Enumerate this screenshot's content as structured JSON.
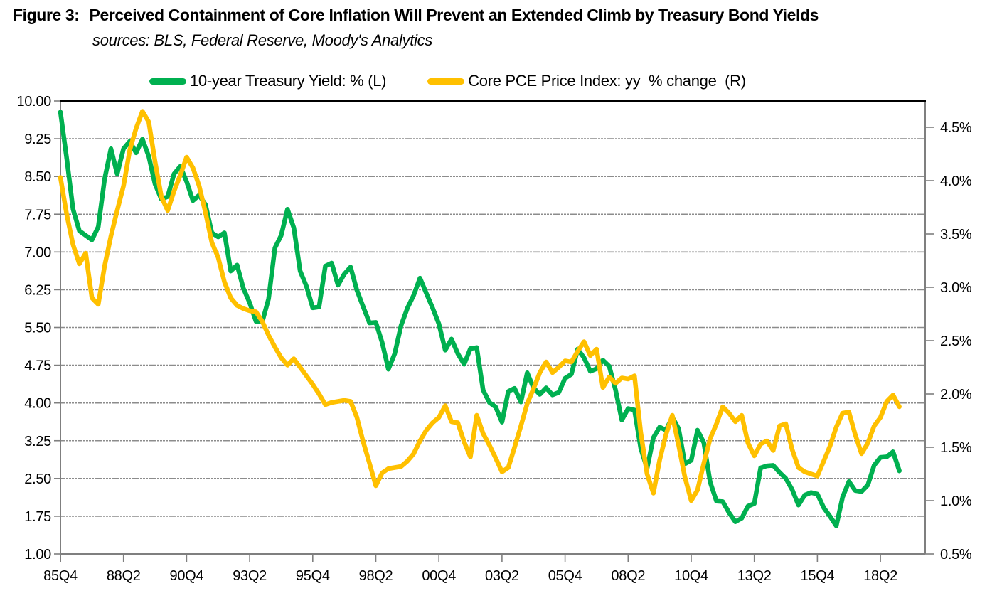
{
  "figure": {
    "title_prefix": "Figure 3:",
    "title": "Perceived Containment of Core Inflation Will Prevent an Extended Climb by Treasury Bond Yields",
    "subtitle": "sources: BLS, Federal Reserve, Moody's Analytics"
  },
  "legend": [
    {
      "label": "10-year Treasury Yield: % (L)",
      "color": "#00B050"
    },
    {
      "label": "Core PCE Price Index: yy  % change  (R)",
      "color": "#FFC000"
    }
  ],
  "colors": {
    "grid": "#8C8C8C",
    "frame": "#7F7F7F",
    "top_border": "#000000",
    "background": "#FFFFFF",
    "treasury_green": "#00B050",
    "pce_gold": "#FFC000"
  },
  "chart_data": {
    "type": "line",
    "title": "Figure 3: Perceived Containment of Core Inflation Will Prevent an Extended Climb by Treasury Bond Yields",
    "grid": "horizontal",
    "legend_position": "top",
    "left_axis": {
      "min": 1.0,
      "max": 10.0,
      "step": 0.75,
      "tick_labels": [
        "10.00",
        "9.25",
        "8.50",
        "7.75",
        "7.00",
        "6.25",
        "5.50",
        "4.75",
        "4.00",
        "3.25",
        "2.50",
        "1.75",
        "1.00"
      ]
    },
    "right_axis": {
      "min": 0.5,
      "max": 4.5,
      "step": 0.5,
      "tick_labels": [
        "4.5%",
        "4.0%",
        "3.5%",
        "3.0%",
        "2.5%",
        "2.0%",
        "1.5%",
        "1.0%",
        "0.5%"
      ]
    },
    "x_tick_labels": [
      "85Q4",
      "88Q2",
      "90Q4",
      "93Q2",
      "95Q4",
      "98Q2",
      "00Q4",
      "03Q2",
      "05Q4",
      "08Q2",
      "10Q4",
      "13Q2",
      "15Q4",
      "18Q2"
    ],
    "x": [
      "85Q4",
      "86Q1",
      "86Q2",
      "86Q3",
      "86Q4",
      "87Q1",
      "87Q2",
      "87Q3",
      "87Q4",
      "88Q1",
      "88Q2",
      "88Q3",
      "88Q4",
      "89Q1",
      "89Q2",
      "89Q3",
      "89Q4",
      "90Q1",
      "90Q2",
      "90Q3",
      "90Q4",
      "91Q1",
      "91Q2",
      "91Q3",
      "91Q4",
      "92Q1",
      "92Q2",
      "92Q3",
      "92Q4",
      "93Q1",
      "93Q2",
      "93Q3",
      "93Q4",
      "94Q1",
      "94Q2",
      "94Q3",
      "94Q4",
      "95Q1",
      "95Q2",
      "95Q3",
      "95Q4",
      "96Q1",
      "96Q2",
      "96Q3",
      "96Q4",
      "97Q1",
      "97Q2",
      "97Q3",
      "97Q4",
      "98Q1",
      "98Q2",
      "98Q3",
      "98Q4",
      "99Q1",
      "99Q2",
      "99Q3",
      "99Q4",
      "00Q1",
      "00Q2",
      "00Q3",
      "00Q4",
      "01Q1",
      "01Q2",
      "01Q3",
      "01Q4",
      "02Q1",
      "02Q2",
      "02Q3",
      "02Q4",
      "03Q1",
      "03Q2",
      "03Q3",
      "03Q4",
      "04Q1",
      "04Q2",
      "04Q3",
      "04Q4",
      "05Q1",
      "05Q2",
      "05Q3",
      "05Q4",
      "06Q1",
      "06Q2",
      "06Q3",
      "06Q4",
      "07Q1",
      "07Q2",
      "07Q3",
      "07Q4",
      "08Q1",
      "08Q2",
      "08Q3",
      "08Q4",
      "09Q1",
      "09Q2",
      "09Q3",
      "09Q4",
      "10Q1",
      "10Q2",
      "10Q3",
      "10Q4",
      "11Q1",
      "11Q2",
      "11Q3",
      "11Q4",
      "12Q1",
      "12Q2",
      "12Q3",
      "12Q4",
      "13Q1",
      "13Q2",
      "13Q3",
      "13Q4",
      "14Q1",
      "14Q2",
      "14Q3",
      "14Q4",
      "15Q1",
      "15Q2",
      "15Q3",
      "15Q4",
      "16Q1",
      "16Q2",
      "16Q3",
      "16Q4",
      "17Q1",
      "17Q2",
      "17Q3",
      "17Q4",
      "18Q1",
      "18Q2",
      "18Q3",
      "18Q4",
      "19Q1"
    ],
    "series": [
      {
        "name": "10-year Treasury Yield: % (L)",
        "axis": "left",
        "color": "#00B050",
        "values": [
          9.78,
          8.85,
          7.85,
          7.42,
          7.33,
          7.24,
          7.5,
          8.45,
          9.05,
          8.55,
          9.05,
          9.2,
          8.97,
          9.24,
          8.9,
          8.35,
          8.05,
          8.1,
          8.55,
          8.7,
          8.4,
          8.02,
          8.13,
          7.94,
          7.38,
          7.3,
          7.38,
          6.62,
          6.74,
          6.28,
          5.99,
          5.62,
          5.61,
          6.07,
          7.08,
          7.33,
          7.85,
          7.48,
          6.62,
          6.32,
          5.89,
          5.91,
          6.72,
          6.78,
          6.34,
          6.56,
          6.7,
          6.24,
          5.91,
          5.59,
          5.6,
          5.2,
          4.67,
          4.98,
          5.54,
          5.88,
          6.14,
          6.48,
          6.18,
          5.89,
          5.57,
          5.05,
          5.27,
          4.98,
          4.77,
          5.08,
          5.1,
          4.26,
          4.01,
          3.92,
          3.62,
          4.23,
          4.29,
          4.02,
          4.6,
          4.3,
          4.17,
          4.3,
          4.16,
          4.21,
          4.49,
          4.57,
          5.07,
          4.9,
          4.63,
          4.68,
          4.85,
          4.73,
          4.26,
          3.66,
          3.89,
          3.86,
          3.1,
          2.7,
          3.31,
          3.52,
          3.46,
          3.72,
          3.49,
          2.79,
          2.86,
          3.46,
          3.21,
          2.43,
          2.05,
          2.04,
          1.82,
          1.64,
          1.71,
          1.95,
          2.0,
          2.71,
          2.75,
          2.76,
          2.62,
          2.5,
          2.28,
          1.97,
          2.17,
          2.22,
          2.19,
          1.92,
          1.75,
          1.56,
          2.13,
          2.44,
          2.26,
          2.24,
          2.37,
          2.76,
          2.92,
          2.93,
          3.03,
          2.65
        ]
      },
      {
        "name": "Core PCE Price Index: yy % change (R)",
        "axis": "right",
        "color": "#FFC000",
        "values": [
          4.03,
          3.68,
          3.4,
          3.22,
          3.32,
          2.9,
          2.84,
          3.2,
          3.48,
          3.72,
          3.95,
          4.29,
          4.49,
          4.65,
          4.55,
          4.18,
          3.85,
          3.72,
          3.9,
          4.05,
          4.22,
          4.12,
          3.95,
          3.7,
          3.42,
          3.28,
          3.05,
          2.9,
          2.83,
          2.8,
          2.78,
          2.77,
          2.68,
          2.55,
          2.44,
          2.34,
          2.27,
          2.33,
          2.25,
          2.17,
          2.09,
          2.0,
          1.9,
          1.92,
          1.93,
          1.94,
          1.93,
          1.78,
          1.55,
          1.35,
          1.14,
          1.26,
          1.3,
          1.31,
          1.32,
          1.37,
          1.44,
          1.56,
          1.66,
          1.73,
          1.78,
          1.89,
          1.74,
          1.73,
          1.55,
          1.41,
          1.8,
          1.63,
          1.52,
          1.4,
          1.27,
          1.31,
          1.5,
          1.7,
          1.91,
          2.05,
          2.2,
          2.3,
          2.2,
          2.25,
          2.31,
          2.3,
          2.4,
          2.49,
          2.36,
          2.42,
          2.06,
          2.16,
          2.1,
          2.15,
          2.14,
          2.17,
          1.64,
          1.25,
          1.07,
          1.38,
          1.62,
          1.8,
          1.52,
          1.22,
          1.0,
          1.1,
          1.35,
          1.58,
          1.72,
          1.88,
          1.82,
          1.74,
          1.8,
          1.54,
          1.42,
          1.53,
          1.56,
          1.47,
          1.7,
          1.72,
          1.48,
          1.31,
          1.27,
          1.25,
          1.23,
          1.37,
          1.51,
          1.69,
          1.82,
          1.83,
          1.62,
          1.44,
          1.54,
          1.7,
          1.78,
          1.93,
          1.99,
          1.88
        ]
      }
    ]
  }
}
